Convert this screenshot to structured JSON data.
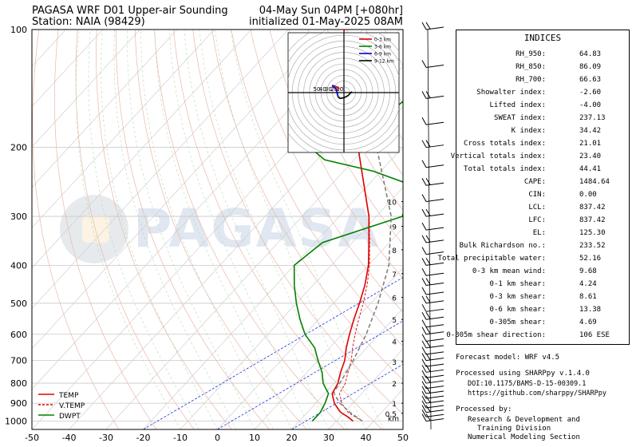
{
  "header": {
    "title_left": "PAGASA WRF D01 Upper-air Sounding",
    "station": "Station: NAIA (98429)",
    "valid": "04-May Sun 04PM [+080hr]",
    "init": "initialized 01-May-2025 08AM"
  },
  "logo_text": "PAGASA",
  "colors": {
    "temp": "#e00000",
    "vtemp": "#e00000",
    "dwpt": "#008000",
    "parcel": "#808080",
    "adiabat": "#0000ff"
  },
  "chart_data": {
    "type": "line",
    "subtype": "skew-t",
    "xlabel": "",
    "ylabel": "",
    "xlim": [
      -50,
      50
    ],
    "ylim": [
      1050,
      100
    ],
    "yscale": "log",
    "x_ticks": [
      "-50",
      "-40",
      "-30",
      "-20",
      "-10",
      "0",
      "10",
      "20",
      "30",
      "40",
      "50"
    ],
    "y_ticks": [
      "1000",
      "900",
      "800",
      "700",
      "600",
      "500",
      "400",
      "300",
      "200",
      "100"
    ],
    "height_ticks": [
      "0.5",
      "1",
      "2",
      "3",
      "4",
      "5",
      "6",
      "7",
      "8",
      "9",
      "10"
    ],
    "height_unit": "km",
    "legend": [
      {
        "name": "TEMP",
        "color": "#e00000",
        "style": "solid"
      },
      {
        "name": "V.TEMP",
        "color": "#e00000",
        "style": "dashed"
      },
      {
        "name": "DWPT",
        "color": "#008000",
        "style": "solid"
      }
    ],
    "legend_position": "bottom-left",
    "series": [
      {
        "name": "TEMP",
        "pressure": [
          1000,
          975,
          950,
          925,
          900,
          850,
          800,
          750,
          700,
          650,
          600,
          550,
          500,
          450,
          400,
          350,
          300,
          250,
          200,
          150,
          125,
          100
        ],
        "values": [
          34.5,
          32,
          29,
          27,
          25,
          22,
          21,
          19,
          17.2,
          14.5,
          12,
          9.5,
          7,
          4,
          0,
          -5.5,
          -12,
          -21,
          -32,
          -47,
          -56,
          -65
        ]
      },
      {
        "name": "V.TEMP",
        "pressure": [
          1000,
          975,
          950,
          925,
          900,
          850,
          800,
          750,
          700,
          650,
          600,
          550,
          500,
          450,
          400,
          350,
          300,
          250,
          200,
          150,
          125,
          100
        ],
        "values": [
          37,
          34,
          31,
          29,
          27,
          24,
          23,
          21,
          19,
          16.2,
          13.5,
          10.8,
          8,
          4.6,
          0.3,
          -5.3,
          -11.9,
          -21,
          -32,
          -47,
          -56,
          -65
        ]
      },
      {
        "name": "DWPT",
        "pressure": [
          1000,
          975,
          950,
          925,
          900,
          850,
          800,
          750,
          700,
          650,
          600,
          550,
          500,
          450,
          400,
          350,
          300,
          250,
          230,
          215,
          200,
          190,
          175,
          160,
          140,
          120,
          100
        ],
        "values": [
          23.5,
          23.5,
          23.5,
          23,
          22.5,
          21,
          17,
          14,
          10,
          6,
          0,
          -5,
          -10,
          -15,
          -20,
          -18,
          -3,
          -8,
          -22,
          -38,
          -45,
          -38,
          -35,
          -32,
          -30,
          -34,
          -33
        ]
      },
      {
        "name": "PARCEL",
        "pressure": [
          1000,
          950,
          900,
          850,
          837,
          800,
          700,
          600,
          500,
          400,
          300,
          200,
          125
        ],
        "values": [
          37,
          31.5,
          26.5,
          22.5,
          22,
          21.5,
          19.5,
          16.5,
          12,
          5.5,
          -6,
          -27,
          -55
        ]
      }
    ],
    "hodograph": {
      "labels": [
        "50",
        "40",
        "30",
        "20",
        "10"
      ],
      "legend": [
        {
          "name": "0-3 km",
          "color": "#e00000"
        },
        {
          "name": "3-6 km",
          "color": "#008000"
        },
        {
          "name": "6-9 km",
          "color": "#0000cc"
        },
        {
          "name": "9-12 km",
          "color": "#000000"
        }
      ],
      "points": [
        [
          -3,
          -1.5
        ],
        [
          -2.5,
          -2.5
        ],
        [
          -4,
          -3
        ],
        [
          -5,
          -3.5
        ],
        [
          -6,
          -3.5
        ],
        [
          -4,
          -2
        ],
        [
          -3,
          2
        ],
        [
          -2,
          3
        ],
        [
          0,
          2.5
        ],
        [
          2,
          1.5
        ],
        [
          3,
          0.5
        ],
        [
          4,
          -0.5
        ]
      ]
    },
    "wind_barbs_note": "wind barbs plotted on right"
  },
  "indices": {
    "title": "INDICES",
    "rows": [
      {
        "label": "RH_950:",
        "value": "64.83"
      },
      {
        "label": "RH_850:",
        "value": "86.09"
      },
      {
        "label": "RH_700:",
        "value": "66.63"
      },
      {
        "label": "Showalter index:",
        "value": "-2.60"
      },
      {
        "label": "Lifted index:",
        "value": "-4.00"
      },
      {
        "label": "SWEAT index:",
        "value": "237.13"
      },
      {
        "label": "K index:",
        "value": "34.42"
      },
      {
        "label": "Cross totals index:",
        "value": "21.01"
      },
      {
        "label": "Vertical totals index:",
        "value": "23.40"
      },
      {
        "label": "Total totals index:",
        "value": "44.41"
      },
      {
        "label": "CAPE:",
        "value": "1484.64"
      },
      {
        "label": "CIN:",
        "value": "0.00"
      },
      {
        "label": "LCL:",
        "value": "837.42"
      },
      {
        "label": "LFC:",
        "value": "837.42"
      },
      {
        "label": "EL:",
        "value": "125.30"
      },
      {
        "label": "Bulk Richardson no.:",
        "value": "233.52"
      },
      {
        "label": "Total precipitable water:",
        "value": "52.16"
      },
      {
        "label": "0-3 km mean wind:",
        "value": "9.68"
      },
      {
        "label": "0-1 km shear:",
        "value": "4.24"
      },
      {
        "label": "0-3 km shear:",
        "value": "8.61"
      },
      {
        "label": "0-6 km shear:",
        "value": "13.38"
      },
      {
        "label": "0-305m shear:",
        "value": "4.69"
      },
      {
        "label": "0-305m shear direction:",
        "value": "106 ESE"
      }
    ]
  },
  "footer": {
    "model": "Forecast model: WRF v4.5",
    "processed": "Processed using SHARPpy v.1.4.0",
    "doi": "DOI:10.1175/BAMS-D-15-00309.1",
    "url": "https://github.com/sharppy/SHARPpy",
    "processed_by": "Processed by:",
    "division1": "Research & Development and",
    "division2": "Training Division",
    "section": "Numerical Modeling Section"
  }
}
